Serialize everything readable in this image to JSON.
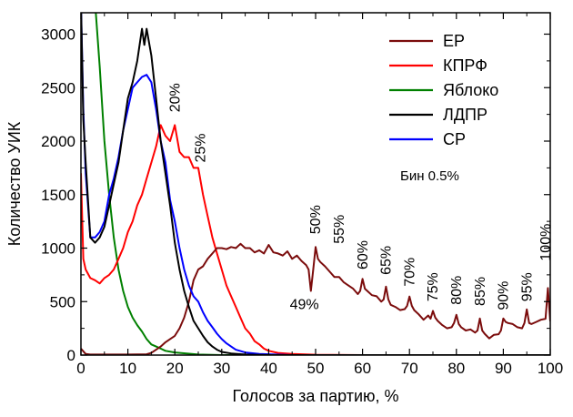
{
  "chart_data": {
    "type": "line",
    "xlabel": "Голосов за партию, %",
    "ylabel": "Количество УИК",
    "xlim": [
      0,
      100
    ],
    "ylim": [
      0,
      3200
    ],
    "xticks": [
      0,
      10,
      20,
      30,
      40,
      50,
      60,
      70,
      80,
      90,
      100
    ],
    "yticks": [
      0,
      500,
      1000,
      1500,
      2000,
      2500,
      3000
    ],
    "grid": false,
    "legend_position": "top-right",
    "note": "Бин 0.5%",
    "series": [
      {
        "name": "ЕР",
        "color": "#7b0c0c",
        "x": [
          0,
          1,
          2,
          5,
          10,
          14,
          15,
          16,
          17,
          18,
          19,
          20,
          21,
          22,
          23,
          24,
          25,
          26,
          27,
          28,
          29,
          30,
          31,
          32,
          33,
          34,
          35,
          36,
          37,
          38,
          39,
          40,
          41,
          42,
          43,
          44,
          45,
          46,
          47,
          48,
          48.5,
          49,
          49.5,
          50,
          50.5,
          51,
          52,
          53,
          54,
          55,
          56,
          57,
          58,
          59,
          59.5,
          60,
          60.5,
          61,
          62,
          63,
          64,
          64.5,
          65,
          65.5,
          66,
          67,
          68,
          69,
          69.5,
          70,
          70.5,
          71,
          72,
          73,
          74,
          74.5,
          75,
          75.5,
          76,
          77,
          78,
          79,
          79.5,
          80,
          80.5,
          81,
          82,
          83,
          84,
          84.5,
          85,
          85.5,
          86,
          87,
          88,
          89,
          89.5,
          90,
          90.5,
          91,
          92,
          93,
          94,
          94.5,
          95,
          95.5,
          96,
          97,
          98,
          99,
          99.5,
          100
        ],
        "y": [
          60,
          10,
          5,
          5,
          5,
          8,
          20,
          50,
          80,
          120,
          150,
          180,
          250,
          350,
          500,
          700,
          800,
          830,
          900,
          950,
          1000,
          1000,
          990,
          1010,
          1000,
          1040,
          1000,
          1000,
          960,
          980,
          950,
          1030,
          960,
          950,
          930,
          970,
          900,
          930,
          880,
          840,
          800,
          600,
          800,
          1010,
          900,
          870,
          830,
          780,
          730,
          730,
          680,
          650,
          620,
          570,
          600,
          712,
          620,
          600,
          560,
          550,
          500,
          520,
          640,
          520,
          470,
          450,
          420,
          430,
          460,
          547,
          460,
          420,
          380,
          330,
          370,
          340,
          413,
          350,
          320,
          280,
          250,
          260,
          300,
          376,
          290,
          260,
          230,
          240,
          210,
          230,
          342,
          230,
          200,
          156,
          190,
          195,
          230,
          342,
          310,
          300,
          290,
          260,
          250,
          300,
          427,
          300,
          290,
          310,
          330,
          340,
          626,
          316
        ]
      },
      {
        "name": "КПРФ",
        "color": "#ff0000",
        "x": [
          0,
          0.5,
          1,
          2,
          3,
          4,
          5,
          6,
          7,
          8,
          9,
          10,
          11,
          12,
          13,
          14,
          15,
          16,
          17,
          18,
          19,
          20,
          21,
          22,
          23,
          24,
          25,
          26,
          27,
          28,
          29,
          30,
          31,
          32,
          33,
          34,
          35,
          36,
          37,
          38,
          39,
          40,
          42,
          45,
          50,
          60,
          100
        ],
        "y": [
          1700,
          900,
          800,
          720,
          700,
          670,
          720,
          750,
          800,
          900,
          1000,
          1150,
          1250,
          1400,
          1500,
          1650,
          1800,
          1950,
          2150,
          2050,
          2000,
          2150,
          1900,
          1850,
          1850,
          1750,
          1750,
          1500,
          1300,
          1100,
          950,
          800,
          650,
          550,
          450,
          350,
          250,
          200,
          130,
          100,
          60,
          40,
          20,
          10,
          3,
          0,
          0
        ]
      },
      {
        "name": "Яблоко",
        "color": "#008000",
        "x": [
          3,
          4,
          5,
          6,
          7,
          8,
          9,
          10,
          11,
          12,
          13,
          14,
          15,
          16,
          17,
          18,
          20,
          25,
          30,
          100
        ],
        "y": [
          3300,
          2700,
          2000,
          1500,
          1100,
          800,
          600,
          450,
          350,
          280,
          220,
          150,
          100,
          80,
          60,
          40,
          25,
          5,
          0,
          0
        ]
      },
      {
        "name": "ЛДПР",
        "color": "#000000",
        "x": [
          0,
          0.5,
          1,
          2,
          3,
          4,
          5,
          6,
          7,
          8,
          9,
          10,
          11,
          12,
          13,
          13.5,
          14,
          15,
          16,
          17,
          18,
          19,
          20,
          21,
          22,
          23,
          24,
          25,
          26,
          27,
          28,
          29,
          30,
          32,
          35,
          40,
          100
        ],
        "y": [
          3300,
          2200,
          1800,
          1100,
          1050,
          1100,
          1200,
          1400,
          1600,
          1800,
          2100,
          2400,
          2550,
          2750,
          3050,
          2900,
          3050,
          2800,
          2400,
          2000,
          1700,
          1400,
          1050,
          800,
          600,
          450,
          320,
          250,
          180,
          120,
          80,
          50,
          30,
          15,
          5,
          0,
          0
        ]
      },
      {
        "name": "СР",
        "color": "#0000ff",
        "x": [
          0,
          0.5,
          1,
          2,
          3,
          4,
          5,
          6,
          7,
          8,
          9,
          10,
          11,
          12,
          13,
          14,
          15,
          16,
          17,
          18,
          19,
          20,
          21,
          22,
          23,
          24,
          25,
          26,
          27,
          28,
          29,
          30,
          31,
          32,
          33,
          35,
          38,
          45,
          100
        ],
        "y": [
          3300,
          2300,
          1700,
          1100,
          1100,
          1150,
          1250,
          1500,
          1650,
          1850,
          2100,
          2300,
          2500,
          2550,
          2600,
          2620,
          2550,
          2300,
          2000,
          1800,
          1450,
          1250,
          1000,
          800,
          650,
          550,
          500,
          400,
          320,
          260,
          200,
          150,
          110,
          80,
          50,
          25,
          10,
          0,
          0
        ]
      }
    ],
    "annotations": [
      {
        "text": "20%",
        "x": 21,
        "y": 2270,
        "rotated": true
      },
      {
        "text": "25%",
        "x": 26.5,
        "y": 1800,
        "rotated": true
      },
      {
        "text": "50%",
        "x": 51,
        "y": 1130,
        "rotated": true
      },
      {
        "text": "55%",
        "x": 56,
        "y": 1040,
        "rotated": true
      },
      {
        "text": "60%",
        "x": 61,
        "y": 800,
        "rotated": true
      },
      {
        "text": "65%",
        "x": 66,
        "y": 750,
        "rotated": true
      },
      {
        "text": "70%",
        "x": 71,
        "y": 640,
        "rotated": true
      },
      {
        "text": "75%",
        "x": 76,
        "y": 500,
        "rotated": true
      },
      {
        "text": "80%",
        "x": 81,
        "y": 470,
        "rotated": true
      },
      {
        "text": "85%",
        "x": 86,
        "y": 460,
        "rotated": true
      },
      {
        "text": "90%",
        "x": 91,
        "y": 420,
        "rotated": true
      },
      {
        "text": "95%",
        "x": 96,
        "y": 500,
        "rotated": true
      },
      {
        "text": "100%",
        "x": 100,
        "y": 880,
        "rotated": true
      },
      {
        "text": "49%",
        "x": 44.5,
        "y": 430,
        "rotated": false
      }
    ]
  }
}
